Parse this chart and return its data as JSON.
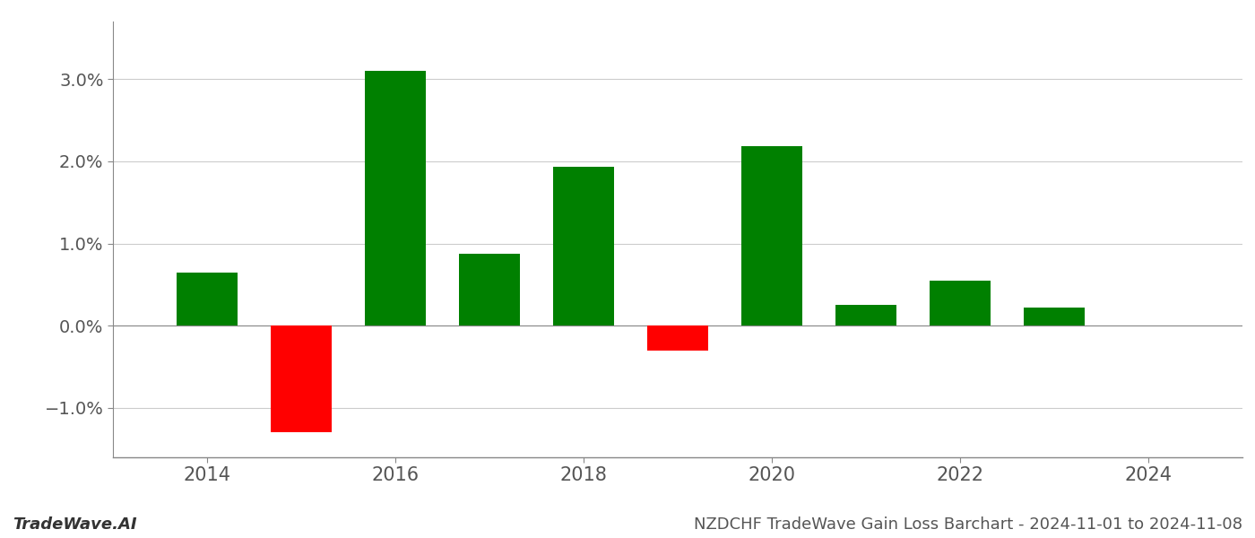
{
  "years": [
    2014,
    2015,
    2016,
    2017,
    2018,
    2019,
    2020,
    2021,
    2022,
    2023
  ],
  "values": [
    0.0065,
    -0.013,
    0.031,
    0.0088,
    0.0193,
    -0.003,
    0.0218,
    0.0025,
    0.0055,
    0.0022
  ],
  "bar_colors": [
    "#008000",
    "#ff0000",
    "#008000",
    "#008000",
    "#008000",
    "#ff0000",
    "#008000",
    "#008000",
    "#008000",
    "#008000"
  ],
  "bar_width": 0.65,
  "title": "NZDCHF TradeWave Gain Loss Barchart - 2024-11-01 to 2024-11-08",
  "watermark": "TradeWave.AI",
  "ylim_min": -0.016,
  "ylim_max": 0.037,
  "xlim_min": 2013.0,
  "xlim_max": 2025.0,
  "background_color": "#ffffff",
  "grid_color": "#cccccc",
  "title_fontsize": 13,
  "watermark_fontsize": 13,
  "tick_fontsize": 15,
  "ytick_fontsize": 14,
  "yticks": [
    -0.01,
    0.0,
    0.01,
    0.02,
    0.03
  ],
  "xticks": [
    2014,
    2016,
    2018,
    2020,
    2022,
    2024
  ]
}
